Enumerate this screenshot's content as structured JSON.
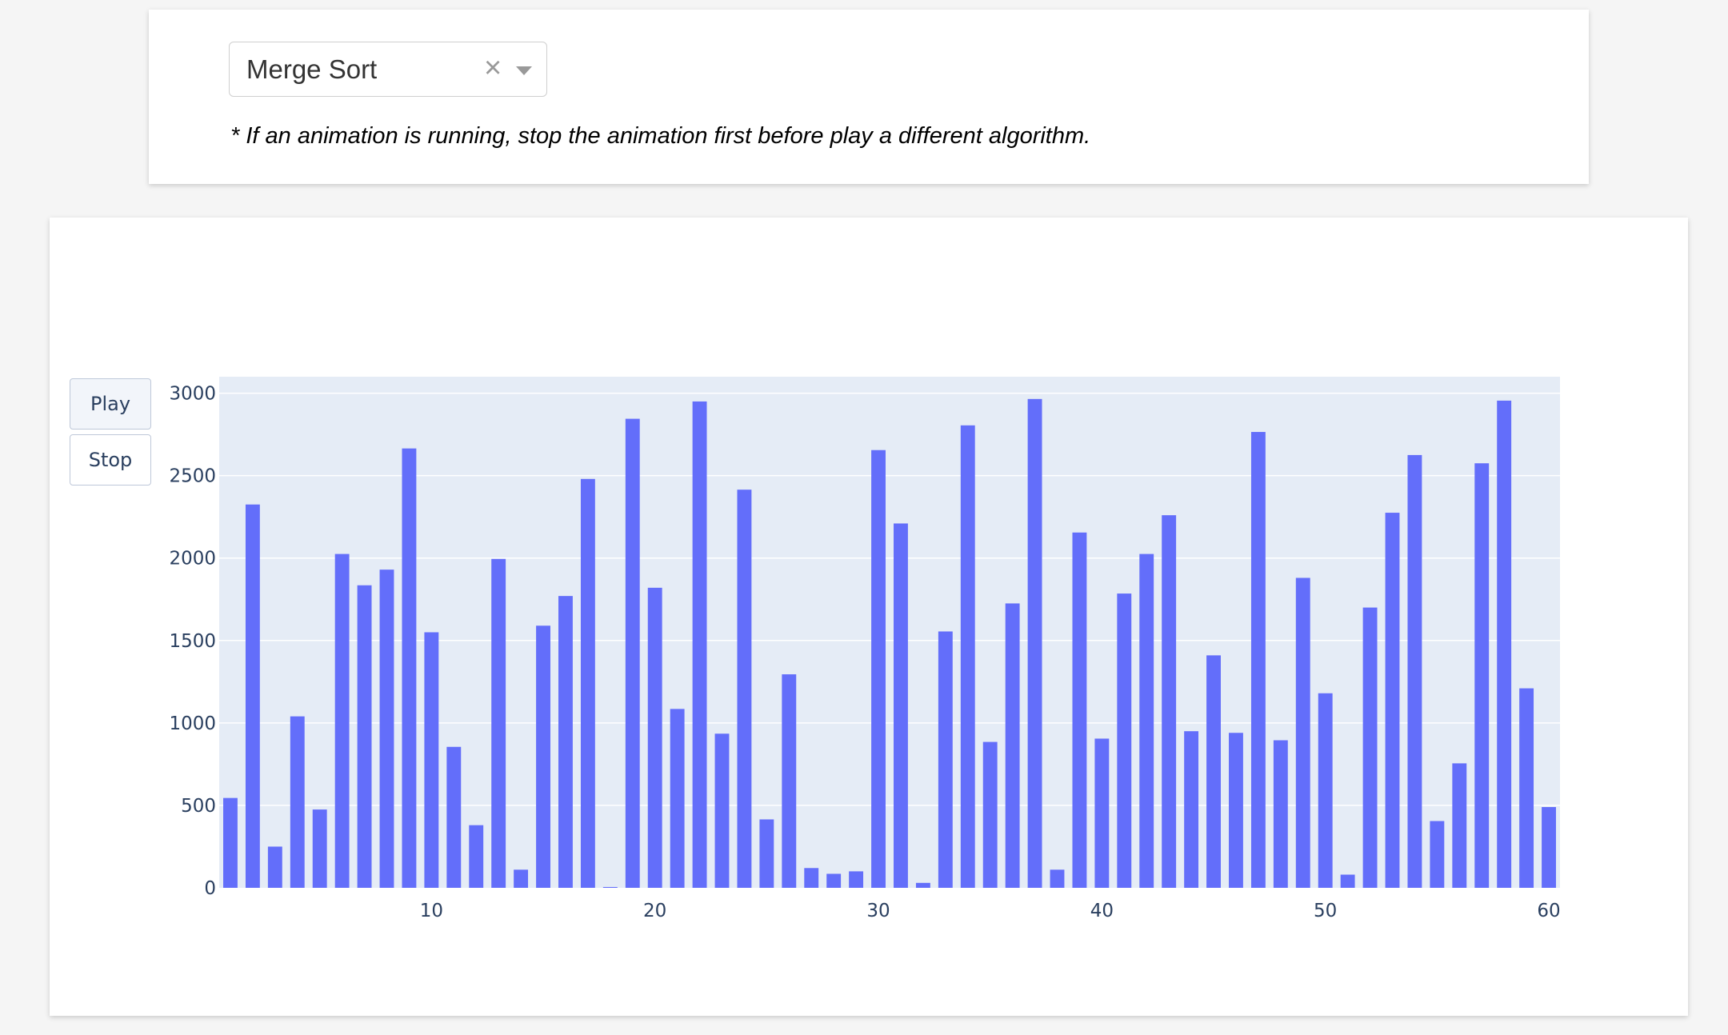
{
  "selector": {
    "value": "Merge Sort",
    "clear_symbol": "×",
    "note": "* If an animation is running, stop the animation first before play a different algorithm."
  },
  "controls": {
    "play_label": "Play",
    "stop_label": "Stop"
  },
  "colors": {
    "bar": "#636efa",
    "plot_bg": "#e5ecf6",
    "grid": "#ffffff",
    "tick_text": "#2a3f5f"
  },
  "chart_data": {
    "type": "bar",
    "title": "",
    "xlabel": "",
    "ylabel": "",
    "xlim": [
      0.5,
      60.5
    ],
    "ylim": [
      0,
      3100
    ],
    "x_ticks": [
      10,
      20,
      30,
      40,
      50,
      60
    ],
    "y_ticks": [
      0,
      500,
      1000,
      1500,
      2000,
      2500,
      3000
    ],
    "grid": true,
    "legend": "none",
    "x": [
      1,
      2,
      3,
      4,
      5,
      6,
      7,
      8,
      9,
      10,
      11,
      12,
      13,
      14,
      15,
      16,
      17,
      18,
      19,
      20,
      21,
      22,
      23,
      24,
      25,
      26,
      27,
      28,
      29,
      30,
      31,
      32,
      33,
      34,
      35,
      36,
      37,
      38,
      39,
      40,
      41,
      42,
      43,
      44,
      45,
      46,
      47,
      48,
      49,
      50,
      51,
      52,
      53,
      54,
      55,
      56,
      57,
      58,
      59,
      60
    ],
    "values": [
      545,
      2325,
      250,
      1040,
      475,
      2025,
      1835,
      1930,
      2665,
      1550,
      855,
      380,
      1995,
      110,
      1590,
      1770,
      2480,
      5,
      2845,
      1820,
      1085,
      2950,
      935,
      2415,
      415,
      1295,
      120,
      85,
      100,
      2655,
      2210,
      30,
      1555,
      2805,
      885,
      1725,
      2965,
      110,
      2155,
      905,
      1785,
      2025,
      2260,
      950,
      1410,
      940,
      2765,
      895,
      1880,
      1180,
      80,
      1700,
      2275,
      2625,
      405,
      755,
      2575,
      2955,
      1210,
      490
    ]
  }
}
